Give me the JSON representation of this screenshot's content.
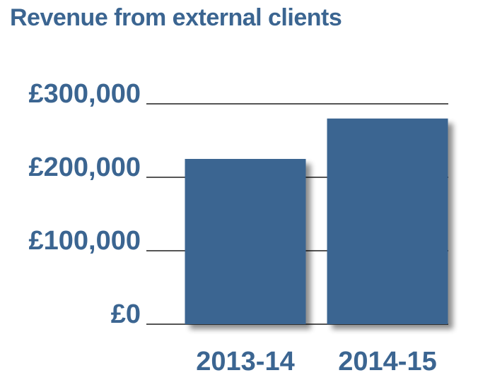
{
  "chart_data": {
    "type": "bar",
    "title": "Revenue from external clients",
    "categories": [
      "2013-14",
      "2014-15"
    ],
    "values": [
      225000,
      280000
    ],
    "ylim": [
      0,
      300000
    ],
    "yticks": [
      0,
      100000,
      200000,
      300000
    ],
    "ytick_labels": [
      "£0",
      "£100,000",
      "£200,000",
      "£300,000"
    ],
    "xlabel": "",
    "ylabel": "",
    "grid": true,
    "legend": "none",
    "colors": {
      "bar": "#3b6591",
      "text": "#3b6591",
      "grid": "#555555"
    }
  }
}
